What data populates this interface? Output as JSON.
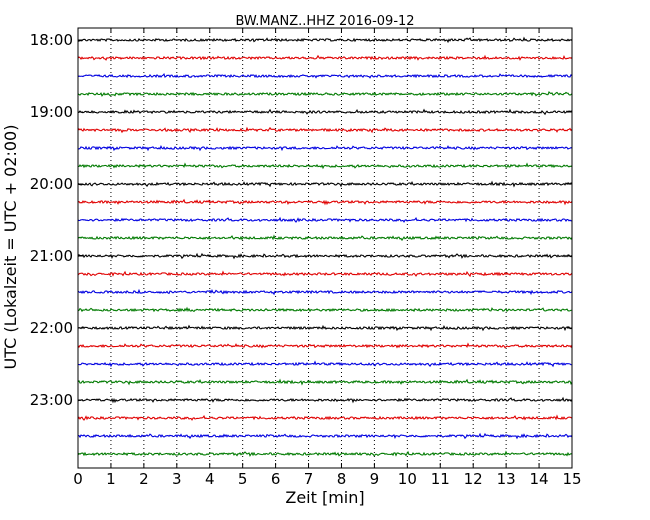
{
  "chart_data": {
    "type": "line",
    "title": "BW.MANZ..HHZ 2016-09-12",
    "xlabel": "Zeit  [min]",
    "ylabel": "UTC (Lokalzeit = UTC + 02:00)",
    "xlim": [
      0,
      15
    ],
    "x_ticks": [
      "0",
      "1",
      "2",
      "3",
      "4",
      "5",
      "6",
      "7",
      "8",
      "9",
      "10",
      "11",
      "12",
      "13",
      "14",
      "15"
    ],
    "y_ticks": [
      "18:00",
      "19:00",
      "20:00",
      "21:00",
      "22:00",
      "23:00"
    ],
    "y_tick_slots": [
      0,
      4,
      8,
      12,
      16,
      20
    ],
    "trace_colors": [
      "#000000",
      "#e00000",
      "#0000e0",
      "#007a00"
    ],
    "trace_count": 24,
    "grid": "vertical-dotted"
  }
}
